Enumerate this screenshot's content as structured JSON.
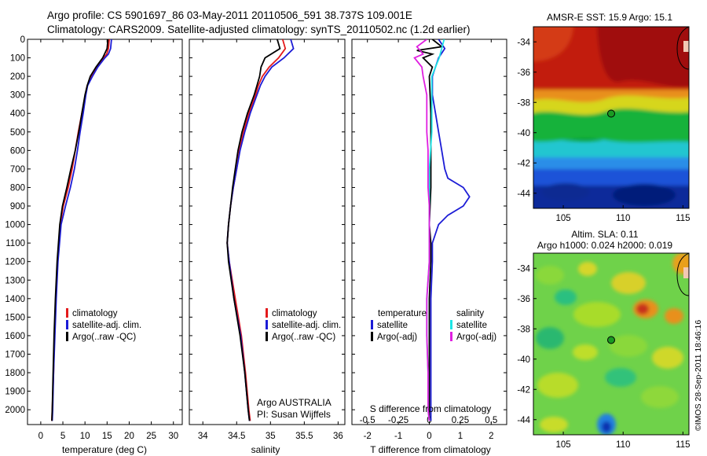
{
  "header": {
    "line1": "Argo profile: CS 5901697_86 03-May-2011 20110506_591 38.737S 109.001E",
    "line2": "Climatology: CARS2009. Satellite-adjusted climatology: synTS_20110502.nc (1.2d earlier)"
  },
  "colors": {
    "climatology": "#e31a1c",
    "satellite": "#1c1cd6",
    "argo": "#000000",
    "sal_satellite": "#1ee5e5",
    "sal_argo": "#e01ee0"
  },
  "chart_data": [
    {
      "name": "temperature",
      "type": "line",
      "xlabel": "temperature (deg C)",
      "ylabel": "",
      "xlim": [
        -3,
        32
      ],
      "ylim": [
        2080,
        0
      ],
      "xticks": [
        "0",
        "5",
        "10",
        "15",
        "20",
        "25",
        "30"
      ],
      "yticks": [
        "0",
        "100",
        "200",
        "300",
        "400",
        "500",
        "600",
        "700",
        "800",
        "900",
        "1000",
        "1100",
        "1200",
        "1300",
        "1400",
        "1500",
        "1600",
        "1700",
        "1800",
        "1900",
        "2000"
      ],
      "legend": [
        "climatology",
        "satellite-adj. clim.",
        "Argo(..raw -QC)"
      ],
      "series": [
        {
          "name": "climatology",
          "depth": [
            0,
            50,
            80,
            100,
            150,
            200,
            250,
            300,
            400,
            500,
            600,
            700,
            800,
            900,
            1000,
            1200,
            1400,
            1600,
            1800,
            2000,
            2060
          ],
          "values": [
            15.5,
            15.3,
            14.9,
            14.2,
            12.6,
            11.5,
            10.5,
            10.1,
            9.3,
            8.5,
            7.8,
            7.1,
            6.2,
            5.1,
            4.4,
            3.8,
            3.4,
            3.1,
            2.9,
            2.6,
            2.5
          ]
        },
        {
          "name": "satellite-adj. clim.",
          "depth": [
            0,
            50,
            80,
            100,
            150,
            200,
            250,
            300,
            400,
            500,
            600,
            700,
            800,
            900,
            1000,
            1200,
            1400,
            1600,
            1800,
            2000,
            2060
          ],
          "values": [
            16.0,
            15.8,
            15.3,
            14.5,
            12.9,
            11.7,
            10.6,
            10.2,
            9.6,
            8.9,
            8.3,
            7.6,
            6.7,
            5.6,
            4.6,
            3.9,
            3.5,
            3.2,
            2.9,
            2.7,
            2.6
          ]
        },
        {
          "name": "Argo(..raw -QC)",
          "depth": [
            0,
            50,
            70,
            100,
            150,
            200,
            250,
            300,
            400,
            500,
            600,
            700,
            800,
            900,
            1000,
            1200,
            1400,
            1600,
            1800,
            2000,
            2060
          ],
          "values": [
            15.2,
            15.0,
            14.6,
            14.0,
            12.5,
            11.2,
            10.5,
            10.0,
            9.3,
            8.6,
            7.8,
            6.8,
            5.9,
            4.9,
            4.3,
            3.7,
            3.3,
            3.0,
            2.8,
            2.6,
            2.5
          ]
        }
      ]
    },
    {
      "name": "salinity",
      "type": "line",
      "xlabel": "salinity",
      "xlim": [
        33.8,
        36.1
      ],
      "ylim": [
        2080,
        0
      ],
      "xticks": [
        "34",
        "34.5",
        "35",
        "35.5",
        "36"
      ],
      "legend": [
        "climatology",
        "satellite-adj. clim.",
        "Argo(..raw -QC)"
      ],
      "annotation": [
        "Argo AUSTRALIA",
        "PI: Susan Wijffels"
      ],
      "series": [
        {
          "name": "climatology",
          "depth": [
            0,
            50,
            100,
            150,
            200,
            250,
            300,
            400,
            500,
            600,
            700,
            800,
            900,
            1000,
            1100,
            1200,
            1400,
            1600,
            1800,
            2000,
            2060
          ],
          "values": [
            35.18,
            35.22,
            35.12,
            34.98,
            34.88,
            34.82,
            34.78,
            34.68,
            34.6,
            34.54,
            34.5,
            34.45,
            34.41,
            34.38,
            34.36,
            34.39,
            34.48,
            34.57,
            34.63,
            34.68,
            34.7
          ]
        },
        {
          "name": "satellite-adj. clim.",
          "depth": [
            0,
            50,
            100,
            150,
            200,
            250,
            300,
            400,
            500,
            600,
            700,
            800,
            900,
            1000,
            1100,
            1200,
            1400,
            1600,
            1800,
            2000,
            2060
          ],
          "values": [
            35.3,
            35.34,
            35.2,
            35.02,
            34.92,
            34.85,
            34.8,
            34.7,
            34.62,
            34.55,
            34.5,
            34.45,
            34.41,
            34.38,
            34.36,
            34.39,
            34.46,
            34.56,
            34.62,
            34.67,
            34.69
          ]
        },
        {
          "name": "Argo(..raw -QC)",
          "depth": [
            0,
            50,
            100,
            150,
            200,
            250,
            300,
            400,
            500,
            600,
            700,
            800,
            900,
            1000,
            1100,
            1200,
            1400,
            1600,
            1800,
            2000,
            2060
          ],
          "values": [
            35.1,
            35.14,
            34.92,
            34.86,
            34.84,
            34.8,
            34.76,
            34.66,
            34.58,
            34.52,
            34.48,
            34.44,
            34.41,
            34.38,
            34.36,
            34.38,
            34.46,
            34.55,
            34.62,
            34.67,
            34.69
          ]
        }
      ]
    },
    {
      "name": "difference",
      "type": "line",
      "xlabel": "T difference from climatology",
      "xlabel_top": "S difference from climatology",
      "xlim": [
        -2.5,
        2.5
      ],
      "ylim": [
        2080,
        0
      ],
      "xticks": [
        "-2",
        "-1",
        "0",
        "1",
        "2"
      ],
      "xticks_top": [
        "-0.5",
        "-0.25",
        "0",
        "0.25",
        "0.5"
      ],
      "legend_temperature_title": "temperature",
      "legend_salinity_title": "salinity",
      "legend": [
        "satellite",
        "Argo(-adj)",
        "satellite",
        "Argo(-adj)"
      ],
      "series": [
        {
          "name": "T satellite",
          "depth": [
            0,
            50,
            100,
            200,
            300,
            400,
            500,
            600,
            700,
            750,
            800,
            850,
            900,
            950,
            1000,
            1100,
            1200,
            1400,
            2060
          ],
          "values": [
            0.3,
            0.5,
            0.3,
            0.1,
            0.1,
            0.2,
            0.3,
            0.4,
            0.5,
            0.6,
            1.1,
            1.3,
            1.1,
            0.6,
            0.3,
            0.1,
            0.1,
            0.05,
            0.05
          ]
        },
        {
          "name": "T Argo(-adj)",
          "depth": [
            0,
            40,
            60,
            80,
            100,
            150,
            200,
            400,
            600,
            800,
            1000,
            1100,
            1200,
            1400,
            1600,
            2060
          ],
          "values": [
            0.1,
            0.4,
            -0.4,
            0.1,
            -0.2,
            0.1,
            0.0,
            0.05,
            0.05,
            0.05,
            0.0,
            0.05,
            0.05,
            0.0,
            0.0,
            0.0
          ]
        },
        {
          "name": "S satellite",
          "depth": [
            0,
            100,
            200,
            300,
            400,
            500,
            600,
            700,
            800,
            900,
            1000,
            1200,
            1400,
            1600,
            1800,
            2000,
            2060
          ],
          "values": [
            0.12,
            0.08,
            0.02,
            0.02,
            0.02,
            0.02,
            0.01,
            0.0,
            0.0,
            0.0,
            0.0,
            0.0,
            -0.02,
            -0.02,
            -0.01,
            -0.01,
            0.0
          ]
        },
        {
          "name": "S Argo(-adj)",
          "depth": [
            0,
            40,
            80,
            100,
            150,
            200,
            300,
            400,
            500,
            600,
            700,
            800,
            900,
            1000,
            1200,
            1400,
            1600,
            1800,
            2000,
            2060
          ],
          "values": [
            -0.02,
            -0.1,
            -0.05,
            -0.12,
            -0.06,
            -0.05,
            -0.02,
            -0.02,
            -0.02,
            -0.01,
            -0.01,
            -0.01,
            0.0,
            0.0,
            0.0,
            -0.02,
            -0.02,
            -0.01,
            -0.01,
            0.0
          ]
        }
      ]
    },
    {
      "name": "sst_map",
      "type": "heatmap",
      "title": "AMSR-E SST: 15.9 Argo: 15.1",
      "xlim": [
        102.5,
        115.5
      ],
      "ylim": [
        -45,
        -33
      ],
      "xticks": [
        "105",
        "110",
        "115"
      ],
      "yticks": [
        "-34",
        "-36",
        "-38",
        "-40",
        "-42",
        "-44"
      ],
      "marker": {
        "lon": 109.0,
        "lat": -38.74
      }
    },
    {
      "name": "sla_map",
      "type": "heatmap",
      "title": [
        "Altim. SLA: 0.11",
        "Argo h1000: 0.024 h2000: 0.019"
      ],
      "xlim": [
        102.5,
        115.5
      ],
      "ylim": [
        -45,
        -33
      ],
      "xticks": [
        "105",
        "110",
        "115"
      ],
      "yticks": [
        "-34",
        "-36",
        "-38",
        "-40",
        "-42",
        "-44"
      ],
      "marker": {
        "lon": 109.0,
        "lat": -38.74
      }
    }
  ],
  "footer_stamp": "©IMOS 28-Sep-2011 18:46:16"
}
